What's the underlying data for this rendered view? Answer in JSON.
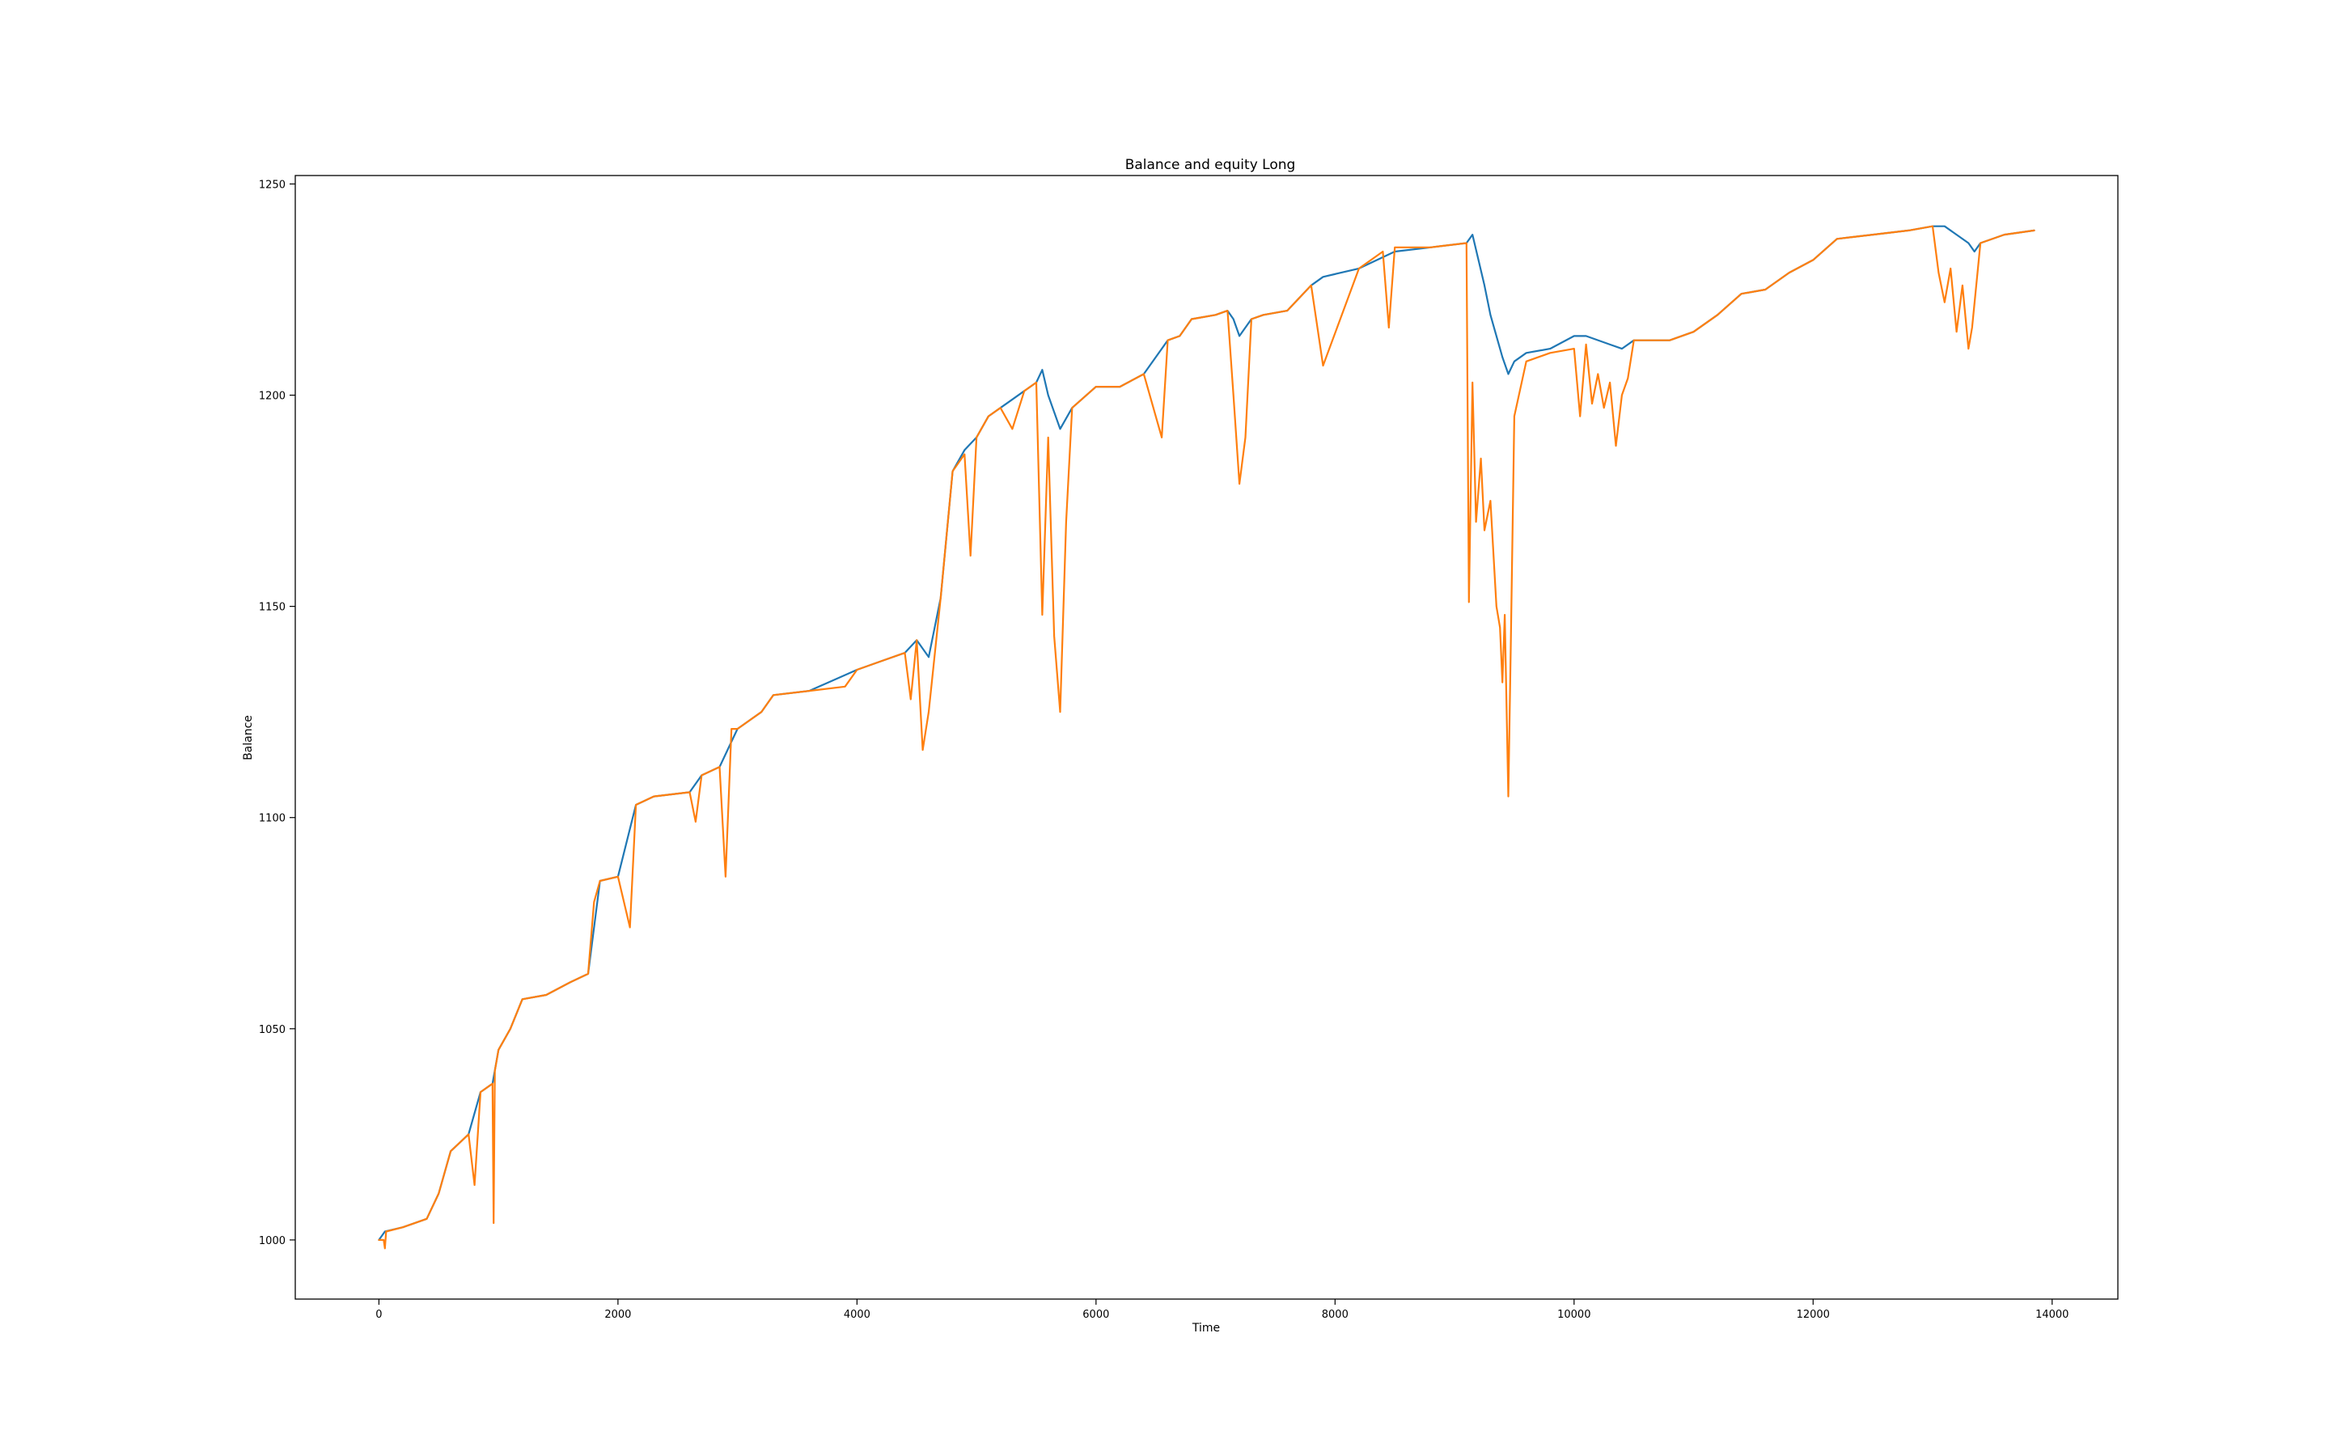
{
  "chart_data": {
    "type": "line",
    "title": "Balance and equity Long",
    "xlabel": "Time",
    "ylabel": "Balance",
    "xlim": [
      -700,
      14550
    ],
    "ylim": [
      986,
      1252
    ],
    "xticks": [
      0,
      2000,
      4000,
      6000,
      8000,
      10000,
      12000,
      14000
    ],
    "yticks": [
      1000,
      1050,
      1100,
      1150,
      1200,
      1250
    ],
    "grid": false,
    "legend": "none",
    "series": [
      {
        "color": "#1f77b4",
        "x": [
          0,
          50,
          200,
          400,
          500,
          600,
          750,
          850,
          950,
          1000,
          1100,
          1200,
          1400,
          1600,
          1750,
          1850,
          2000,
          2150,
          2300,
          2600,
          2700,
          2850,
          3000,
          3200,
          3300,
          3600,
          4000,
          4200,
          4400,
          4500,
          4600,
          4700,
          4800,
          4900,
          5000,
          5100,
          5200,
          5300,
          5400,
          5500,
          5550,
          5600,
          5650,
          5700,
          5800,
          6000,
          6200,
          6400,
          6600,
          6700,
          6800,
          7000,
          7100,
          7150,
          7200,
          7300,
          7400,
          7600,
          7800,
          7900,
          8200,
          8500,
          8800,
          9100,
          9150,
          9200,
          9250,
          9300,
          9350,
          9400,
          9450,
          9500,
          9600,
          9800,
          10000,
          10100,
          10300,
          10400,
          10500,
          10800,
          11000,
          11200,
          11400,
          11600,
          11800,
          12000,
          12200,
          12500,
          12800,
          13000,
          13100,
          13200,
          13300,
          13350,
          13400,
          13600,
          13850
        ],
        "y": [
          1000,
          1002,
          1003,
          1005,
          1011,
          1021,
          1025,
          1035,
          1037,
          1045,
          1050,
          1057,
          1058,
          1061,
          1063,
          1085,
          1086,
          1103,
          1105,
          1106,
          1110,
          1112,
          1121,
          1125,
          1129,
          1130,
          1135,
          1137,
          1139,
          1142,
          1138,
          1152,
          1182,
          1187,
          1190,
          1195,
          1197,
          1199,
          1201,
          1203,
          1206,
          1200,
          1196,
          1192,
          1197,
          1202,
          1202,
          1205,
          1213,
          1214,
          1218,
          1219,
          1220,
          1218,
          1214,
          1218,
          1219,
          1220,
          1226,
          1228,
          1230,
          1234,
          1235,
          1236,
          1238,
          1232,
          1226,
          1219,
          1214,
          1209,
          1205,
          1208,
          1210,
          1211,
          1214,
          1214,
          1212,
          1211,
          1213,
          1213,
          1215,
          1219,
          1224,
          1225,
          1229,
          1232,
          1237,
          1238,
          1239,
          1240,
          1240,
          1238,
          1236,
          1234,
          1236,
          1238,
          1239
        ]
      },
      {
        "color": "#ff7f0e",
        "x": [
          0,
          40,
          50,
          60,
          200,
          400,
          500,
          600,
          750,
          800,
          850,
          950,
          960,
          970,
          1000,
          1100,
          1200,
          1400,
          1600,
          1750,
          1800,
          1850,
          2000,
          2100,
          2150,
          2300,
          2600,
          2650,
          2700,
          2850,
          2900,
          2950,
          3000,
          3200,
          3300,
          3600,
          3900,
          4000,
          4200,
          4400,
          4450,
          4500,
          4550,
          4600,
          4700,
          4800,
          4850,
          4900,
          4950,
          5000,
          5100,
          5200,
          5300,
          5400,
          5500,
          5550,
          5600,
          5650,
          5700,
          5750,
          5800,
          6000,
          6200,
          6400,
          6550,
          6600,
          6700,
          6800,
          7000,
          7100,
          7150,
          7200,
          7250,
          7300,
          7400,
          7600,
          7800,
          7900,
          8200,
          8400,
          8450,
          8500,
          8800,
          9100,
          9120,
          9150,
          9180,
          9220,
          9250,
          9300,
          9350,
          9380,
          9400,
          9420,
          9450,
          9470,
          9500,
          9600,
          9800,
          10000,
          10050,
          10100,
          10150,
          10200,
          10250,
          10300,
          10350,
          10400,
          10450,
          10500,
          10800,
          11000,
          11200,
          11400,
          11600,
          11800,
          12000,
          12200,
          12500,
          12800,
          13000,
          13050,
          13100,
          13150,
          13200,
          13250,
          13300,
          13330,
          13400,
          13600,
          13850
        ],
        "y": [
          1000,
          1000,
          998,
          1002,
          1003,
          1005,
          1011,
          1021,
          1025,
          1013,
          1035,
          1037,
          1004,
          1040,
          1045,
          1050,
          1057,
          1058,
          1061,
          1063,
          1080,
          1085,
          1086,
          1074,
          1103,
          1105,
          1106,
          1099,
          1110,
          1112,
          1086,
          1121,
          1121,
          1125,
          1129,
          1130,
          1131,
          1135,
          1137,
          1139,
          1128,
          1142,
          1116,
          1125,
          1152,
          1182,
          1184,
          1186,
          1162,
          1190,
          1195,
          1197,
          1192,
          1201,
          1203,
          1148,
          1190,
          1143,
          1125,
          1170,
          1197,
          1202,
          1202,
          1205,
          1190,
          1213,
          1214,
          1218,
          1219,
          1220,
          1200,
          1179,
          1190,
          1218,
          1219,
          1220,
          1226,
          1207,
          1230,
          1234,
          1216,
          1235,
          1235,
          1236,
          1151,
          1203,
          1170,
          1185,
          1168,
          1175,
          1150,
          1145,
          1132,
          1148,
          1105,
          1140,
          1195,
          1208,
          1210,
          1211,
          1195,
          1212,
          1198,
          1205,
          1197,
          1203,
          1188,
          1200,
          1204,
          1213,
          1213,
          1215,
          1219,
          1224,
          1225,
          1229,
          1232,
          1237,
          1238,
          1239,
          1240,
          1229,
          1222,
          1230,
          1215,
          1226,
          1211,
          1216,
          1236,
          1238,
          1239
        ]
      }
    ]
  }
}
